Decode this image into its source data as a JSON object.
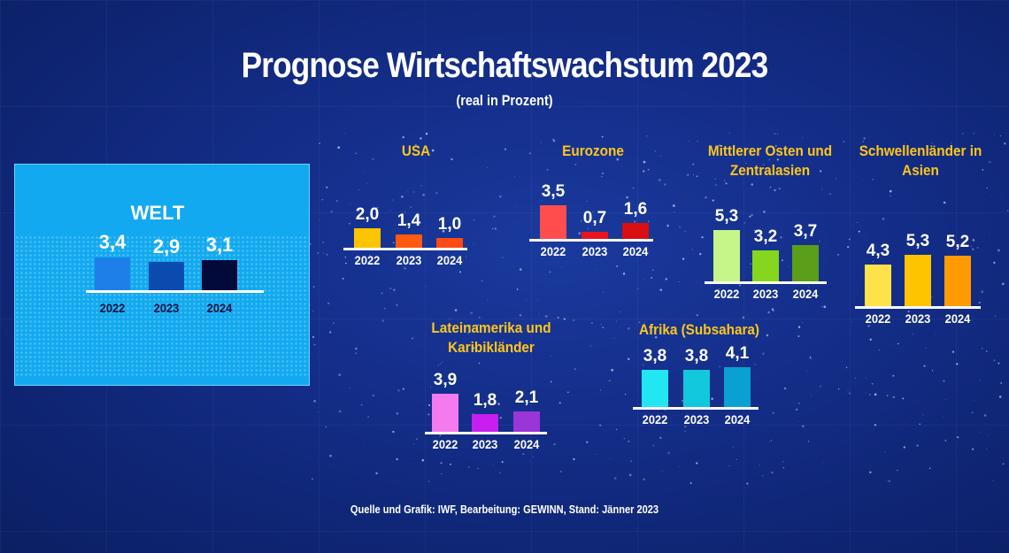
{
  "header": {
    "title": "Prognose Wirtschaftswachstum 2023",
    "subtitle": "(real in Prozent)"
  },
  "footer": {
    "source": "Quelle und Grafik: IWF, Bearbeitung: GEWINN, Stand: Jänner 2023"
  },
  "chart_data": [
    {
      "type": "bar",
      "title": "WELT",
      "categories": [
        "2022",
        "2023",
        "2024"
      ],
      "values": [
        3.4,
        2.9,
        3.1
      ],
      "labels": [
        "3,4",
        "2,9",
        "3,1"
      ],
      "colors": [
        "#1e7fe8",
        "#0a4bb0",
        "#020a3a"
      ],
      "ylim": [
        0,
        6
      ]
    },
    {
      "type": "bar",
      "title": "USA",
      "categories": [
        "2022",
        "2023",
        "2024"
      ],
      "values": [
        2.0,
        1.4,
        1.0
      ],
      "labels": [
        "2,0",
        "1,4",
        "1,0"
      ],
      "colors": [
        "#ffc400",
        "#ff5a12",
        "#ff4a14"
      ],
      "ylim": [
        0,
        6
      ]
    },
    {
      "type": "bar",
      "title": "Eurozone",
      "categories": [
        "2022",
        "2023",
        "2024"
      ],
      "values": [
        3.5,
        0.7,
        1.6
      ],
      "labels": [
        "3,5",
        "0,7",
        "1,6"
      ],
      "colors": [
        "#ff4d4d",
        "#e8141e",
        "#d90f14"
      ],
      "ylim": [
        0,
        6
      ]
    },
    {
      "type": "bar",
      "title": "Mittlerer Osten und Zentralasien",
      "categories": [
        "2022",
        "2023",
        "2024"
      ],
      "values": [
        5.3,
        3.2,
        3.7
      ],
      "labels": [
        "5,3",
        "3,2",
        "3,7"
      ],
      "colors": [
        "#c6f58a",
        "#86d61e",
        "#5a9e1a"
      ],
      "ylim": [
        0,
        6
      ]
    },
    {
      "type": "bar",
      "title": "Schwellenländer in Asien",
      "categories": [
        "2022",
        "2023",
        "2024"
      ],
      "values": [
        4.3,
        5.3,
        5.2
      ],
      "labels": [
        "4,3",
        "5,3",
        "5,2"
      ],
      "colors": [
        "#ffe14a",
        "#ffc400",
        "#ff9a00"
      ],
      "ylim": [
        0,
        6
      ]
    },
    {
      "type": "bar",
      "title": "Lateinamerika und Karibikländer",
      "categories": [
        "2022",
        "2023",
        "2024"
      ],
      "values": [
        3.9,
        1.8,
        2.1
      ],
      "labels": [
        "3,9",
        "1,8",
        "2,1"
      ],
      "colors": [
        "#f57af0",
        "#c81ef0",
        "#9a35d6"
      ],
      "ylim": [
        0,
        6
      ]
    },
    {
      "type": "bar",
      "title": "Afrika (Subsahara)",
      "categories": [
        "2022",
        "2023",
        "2024"
      ],
      "values": [
        3.8,
        3.8,
        4.1
      ],
      "labels": [
        "3,8",
        "3,8",
        "4,1"
      ],
      "colors": [
        "#22e6f2",
        "#12c8dc",
        "#0aa0d0"
      ],
      "ylim": [
        0,
        6
      ]
    }
  ]
}
